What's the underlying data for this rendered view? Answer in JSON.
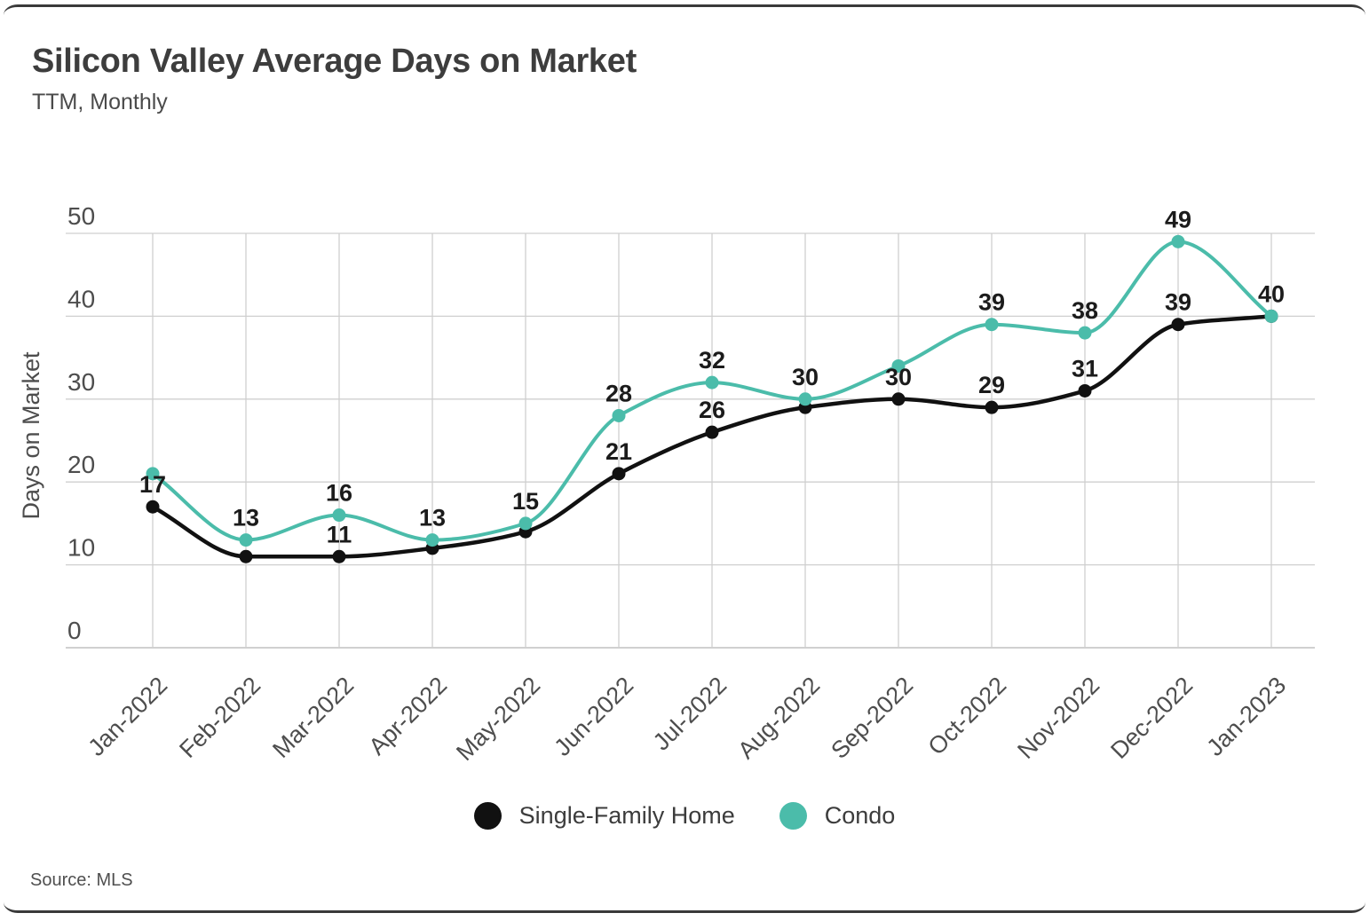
{
  "card": {
    "title": "Silicon Valley Average Days on Market",
    "subtitle": "TTM, Monthly",
    "source": "Source:  MLS"
  },
  "chart_data": {
    "type": "line",
    "title": "Silicon Valley Average Days on Market",
    "subtitle": "TTM, Monthly",
    "ylabel": "Days on Market",
    "xlabel": "",
    "ylim": [
      0,
      50
    ],
    "y_ticks": [
      0,
      10,
      20,
      30,
      40,
      50
    ],
    "grid": true,
    "legend_position": "bottom",
    "categories": [
      "Jan-2022",
      "Feb-2022",
      "Mar-2022",
      "Apr-2022",
      "May-2022",
      "Jun-2022",
      "Jul-2022",
      "Aug-2022",
      "Sep-2022",
      "Oct-2022",
      "Nov-2022",
      "Dec-2022",
      "Jan-2023"
    ],
    "series": [
      {
        "name": "Single-Family Home",
        "color": "#111111",
        "values": [
          17,
          11,
          11,
          12,
          14,
          21,
          26,
          29,
          30,
          29,
          31,
          39,
          40
        ],
        "point_labels": [
          17,
          null,
          11,
          null,
          null,
          21,
          26,
          null,
          30,
          29,
          31,
          39,
          null
        ]
      },
      {
        "name": "Condo",
        "color": "#4BBCAA",
        "values": [
          21,
          13,
          16,
          13,
          15,
          28,
          32,
          30,
          34,
          39,
          38,
          49,
          40
        ],
        "point_labels": [
          null,
          13,
          16,
          13,
          15,
          28,
          32,
          30,
          null,
          39,
          38,
          49,
          40
        ]
      }
    ],
    "colors": {
      "grid": "#cfcfcf",
      "axis_line": "#b3b3b3",
      "tick_text": "#4d4d4d",
      "value_label_text": "#1b1b1b"
    }
  }
}
